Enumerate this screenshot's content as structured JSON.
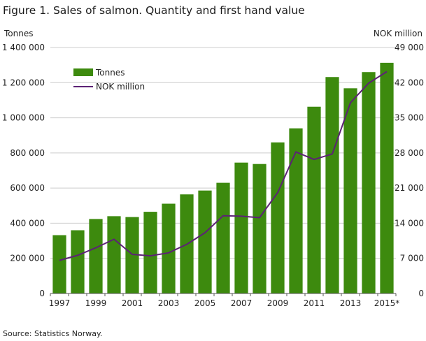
{
  "figure_title": "Figure 1. Sales of salmon. Quantity and first hand value",
  "source": "Source: Statistics Norway.",
  "colors": {
    "bar": "#3d8a0e",
    "line": "#5c2275",
    "grid": "#cccccc",
    "axis": "#555555"
  },
  "chart_data": {
    "type": "bar",
    "title": "",
    "categories": [
      "1997",
      "1998",
      "1999",
      "2000",
      "2001",
      "2002",
      "2003",
      "2004",
      "2005",
      "2006",
      "2007",
      "2008",
      "2009",
      "2010",
      "2011",
      "2012",
      "2013",
      "2014",
      "2015*"
    ],
    "x_tick_labels": [
      "1997",
      "1999",
      "2001",
      "2003",
      "2005",
      "2007",
      "2009",
      "2011",
      "2013",
      "2015*"
    ],
    "series": [
      {
        "name": "Tonnes",
        "type": "bar",
        "axis": "left",
        "values": [
          332000,
          360000,
          424000,
          440000,
          435000,
          465000,
          511000,
          564000,
          586000,
          630000,
          745000,
          737000,
          860000,
          940000,
          1063000,
          1232000,
          1168000,
          1260000,
          1313000
        ]
      },
      {
        "name": "NOK million",
        "type": "line",
        "axis": "right",
        "values": [
          6600,
          7600,
          9100,
          10800,
          7800,
          7500,
          8100,
          9800,
          12100,
          15500,
          15400,
          15100,
          20100,
          28200,
          26700,
          27800,
          38000,
          41900,
          44200
        ]
      }
    ],
    "y_left": {
      "label": "Tonnes",
      "range": [
        0,
        1400000
      ],
      "ticks": [
        0,
        200000,
        400000,
        600000,
        800000,
        1000000,
        1200000,
        1400000
      ],
      "tick_labels": [
        "0",
        "200 000",
        "400 000",
        "600 000",
        "800 000",
        "1 000 000",
        "1 200 000",
        "1 400 000"
      ]
    },
    "y_right": {
      "label": "NOK million",
      "range": [
        0,
        49000
      ],
      "ticks": [
        0,
        7000,
        14000,
        21000,
        28000,
        35000,
        42000,
        49000
      ],
      "tick_labels": [
        "0",
        "7 000",
        "14 000",
        "21 000",
        "28 000",
        "35 000",
        "42 000",
        "49 000"
      ]
    },
    "grid": true,
    "legend_position": "top-left"
  }
}
